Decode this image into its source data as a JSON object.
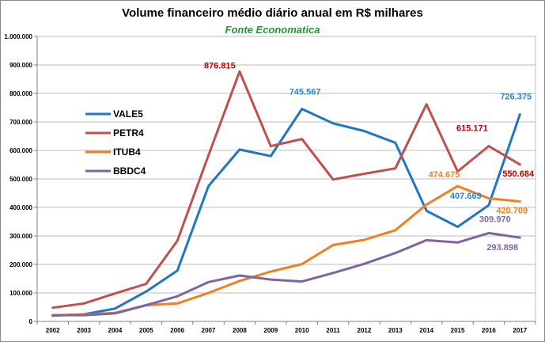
{
  "chart_data": {
    "type": "line",
    "title": "Volume financeiro médio diário anual em R$ milhares",
    "subtitle": "Fonte Economatica",
    "xlabel": "",
    "ylabel": "",
    "x": [
      "2002",
      "2003",
      "2004",
      "2005",
      "2006",
      "2007",
      "2008",
      "2009",
      "2010",
      "2011",
      "2012",
      "2013",
      "2014",
      "2015",
      "2016",
      "2017"
    ],
    "ylim": [
      0,
      1000000
    ],
    "yticks": [
      0,
      100000,
      200000,
      300000,
      400000,
      500000,
      600000,
      700000,
      800000,
      900000,
      1000000
    ],
    "ytick_labels": [
      "0",
      "100.000",
      "200.000",
      "300.000",
      "400.000",
      "500.000",
      "600.000",
      "700.000",
      "800.000",
      "900.000",
      "1.000.000"
    ],
    "grid": true,
    "legend_position": "left-center",
    "series": [
      {
        "name": "VALE5",
        "color": "#1f77c4",
        "values": [
          20000,
          25000,
          45000,
          105000,
          178000,
          475000,
          603000,
          580000,
          745567,
          695000,
          668000,
          627000,
          388000,
          332000,
          407669,
          726375
        ]
      },
      {
        "name": "PETR4",
        "color": "#c0504d",
        "values": [
          48000,
          63000,
          98000,
          132000,
          283000,
          583000,
          876815,
          615000,
          640000,
          498000,
          518000,
          537000,
          762000,
          526000,
          615171,
          550684
        ]
      },
      {
        "name": "ITUB4",
        "color": "#f07f22",
        "values": [
          22000,
          24000,
          30000,
          57000,
          63000,
          100000,
          142000,
          175000,
          201000,
          268000,
          286000,
          320000,
          410000,
          474675,
          432000,
          420709
        ]
      },
      {
        "name": "BBDC4",
        "color": "#8064a2",
        "values": [
          22000,
          22000,
          28000,
          57000,
          88000,
          138000,
          161000,
          147000,
          140000,
          170000,
          202000,
          240000,
          285000,
          277000,
          309970,
          293898
        ]
      }
    ],
    "annotations": [
      {
        "text": "876.815",
        "color": "#c00000",
        "series": "PETR4",
        "x": "2008"
      },
      {
        "text": "745.567",
        "color": "#2e86c8",
        "series": "VALE5",
        "x": "2010"
      },
      {
        "text": "726.375",
        "color": "#2e86c8",
        "series": "VALE5",
        "x": "2017"
      },
      {
        "text": "615.171",
        "color": "#c00000",
        "series": "PETR4",
        "x": "2016"
      },
      {
        "text": "550.684",
        "color": "#c00000",
        "series": "PETR4",
        "x": "2017"
      },
      {
        "text": "474.675",
        "color": "#f07f22",
        "series": "ITUB4",
        "x": "2015"
      },
      {
        "text": "407.669",
        "color": "#2e86c8",
        "series": "VALE5",
        "x": "2016"
      },
      {
        "text": "420.709",
        "color": "#f07f22",
        "series": "ITUB4",
        "x": "2017"
      },
      {
        "text": "309.970",
        "color": "#8064a2",
        "series": "BBDC4",
        "x": "2016"
      },
      {
        "text": "293.898",
        "color": "#8064a2",
        "series": "BBDC4",
        "x": "2017"
      }
    ]
  }
}
